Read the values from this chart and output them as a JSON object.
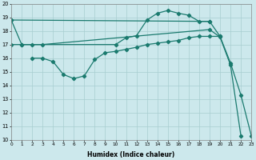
{
  "color": "#1a7a6e",
  "bg_color": "#cce8ec",
  "grid_color": "#a8cdd0",
  "xlim": [
    0,
    23
  ],
  "ylim": [
    10,
    20
  ],
  "xticks": [
    0,
    1,
    2,
    3,
    4,
    5,
    6,
    7,
    8,
    9,
    10,
    11,
    12,
    13,
    14,
    15,
    16,
    17,
    18,
    19,
    20,
    21,
    22,
    23
  ],
  "yticks": [
    10,
    11,
    12,
    13,
    14,
    15,
    16,
    17,
    18,
    19,
    20
  ],
  "xlabel": "Humidex (Indice chaleur)",
  "curve1_x": [
    0,
    1,
    10,
    11,
    12,
    13,
    14,
    15,
    16,
    17,
    18,
    19
  ],
  "curve1_y": [
    18.8,
    17.0,
    17.0,
    17.5,
    17.65,
    18.8,
    19.3,
    19.5,
    19.3,
    19.15,
    18.7,
    18.7
  ],
  "curve2_x": [
    0,
    1,
    2,
    3,
    19,
    20,
    21,
    22
  ],
  "curve2_y": [
    17.0,
    17.0,
    17.0,
    17.0,
    18.1,
    17.55,
    15.5,
    10.3
  ],
  "curve3_x": [
    2,
    3,
    4,
    5,
    6,
    7,
    8,
    9,
    10,
    11,
    12,
    13,
    14,
    15,
    16,
    17,
    18,
    19,
    20
  ],
  "curve3_y": [
    16.0,
    16.0,
    15.75,
    14.8,
    14.5,
    14.7,
    15.9,
    16.4,
    16.5,
    16.65,
    16.8,
    17.0,
    17.1,
    17.2,
    17.3,
    17.5,
    17.6,
    17.6,
    17.6
  ],
  "curve4_x": [
    0,
    19,
    20,
    21,
    22,
    23
  ],
  "curve4_y": [
    18.8,
    18.7,
    17.6,
    15.65,
    13.3,
    10.3
  ]
}
